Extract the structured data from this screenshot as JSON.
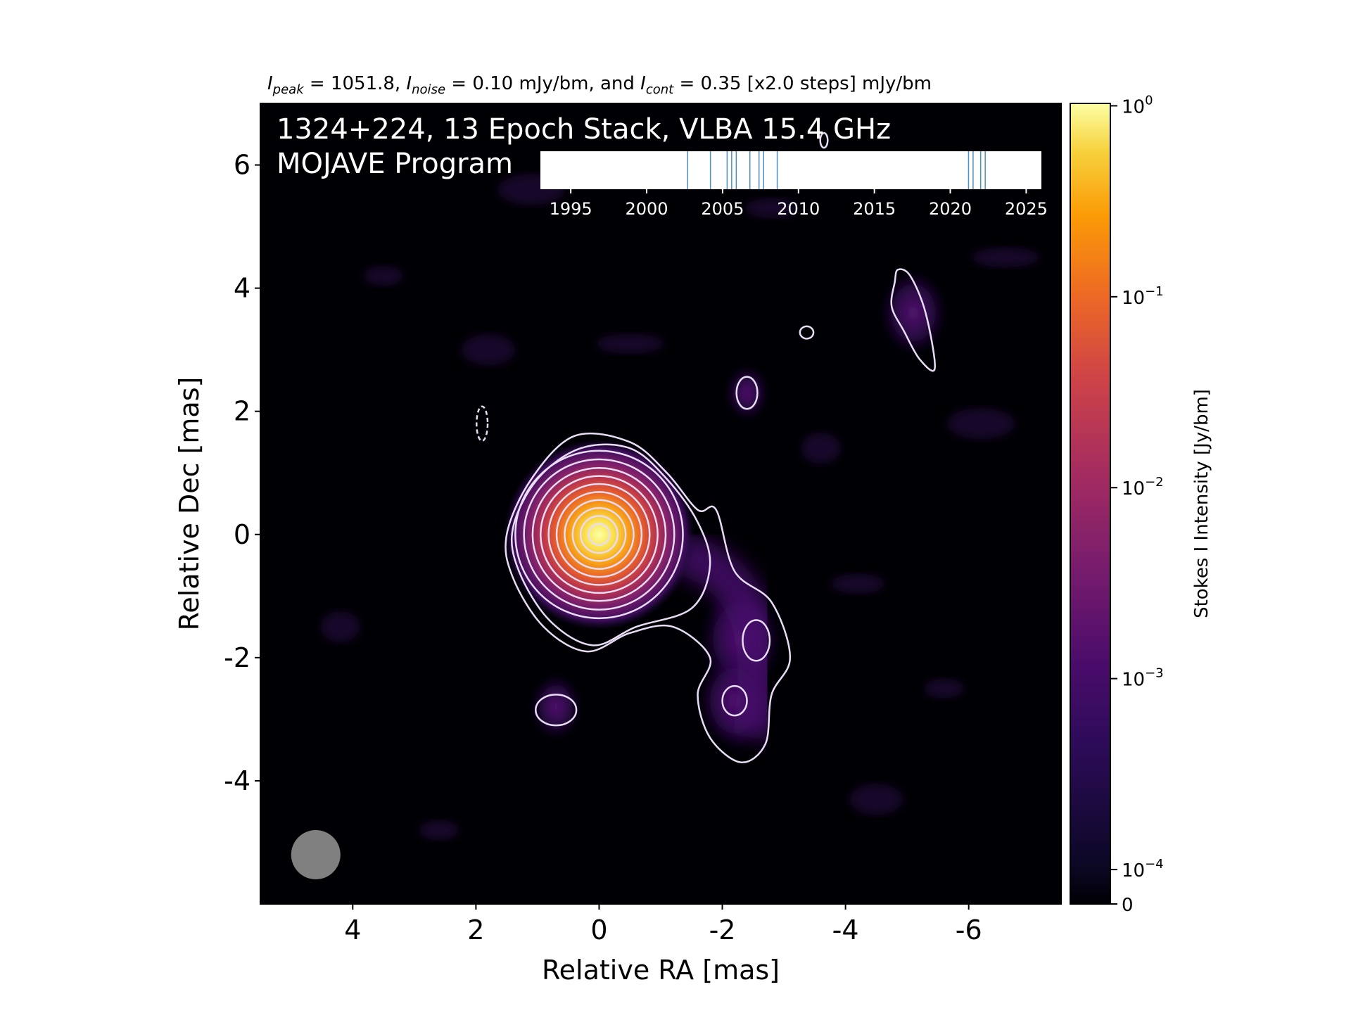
{
  "chart_data": {
    "type": "heatmap",
    "header": {
      "peak_sym": "I",
      "peak_sub": "peak",
      "peak_val": " = 1051.8, ",
      "noise_sym": "I",
      "noise_sub": "noise",
      "noise_val": " = 0.10 mJy/bm, and ",
      "cont_sym": "I",
      "cont_sub": "cont",
      "cont_val": " = 0.35 [x2.0 steps] mJy/bm"
    },
    "overlay_title_line1": "1324+224, 13 Epoch Stack, VLBA 15.4 GHz",
    "overlay_title_line2": "MOJAVE Program",
    "xlabel": "Relative RA [mas]",
    "ylabel": "Relative Dec [mas]",
    "xlim": [
      5.5,
      -7.5
    ],
    "ylim": [
      -6,
      7
    ],
    "x_ticks": [
      4,
      2,
      0,
      -2,
      -4,
      -6
    ],
    "x_tick_labels": [
      "4",
      "2",
      "0",
      "-2",
      "-4",
      "-6"
    ],
    "y_ticks": [
      6,
      4,
      2,
      0,
      -2,
      -4
    ],
    "y_tick_labels": [
      "6",
      "4",
      "2",
      "0",
      "-2",
      "-4"
    ],
    "colormap": "inferno",
    "background_color": "#000004",
    "contour_color": "#e8dcf4",
    "beam_color": "#808080",
    "components": [
      {
        "x": 0.0,
        "y": 0.0,
        "peak": 1.05,
        "sigma": 0.45
      },
      {
        "x": -2.3,
        "y": -1.7,
        "peak": 0.0009,
        "sigma": 0.5
      },
      {
        "x": -2.2,
        "y": -2.7,
        "peak": 0.0008,
        "sigma": 0.45
      },
      {
        "x": 0.7,
        "y": -2.8,
        "peak": 0.0006,
        "sigma": 0.3
      },
      {
        "x": -5.1,
        "y": 3.6,
        "peak": 0.0005,
        "sigma": 0.4
      },
      {
        "x": -2.4,
        "y": 2.3,
        "peak": 0.0004,
        "sigma": 0.25
      }
    ],
    "contour_levels_mJy": [
      0.35,
      0.7,
      1.4,
      2.8,
      5.6,
      11.2,
      22.4,
      44.8,
      89.6,
      179.2,
      358.4,
      716.8
    ],
    "beam": {
      "x": 4.6,
      "y": -5.2,
      "diameter_mas": 0.8
    },
    "colorbar": {
      "label": "Stokes I Intensity [Jy/bm]",
      "scale": "log",
      "range": [
        0,
        1
      ],
      "ticks": [
        {
          "value": 1,
          "base": "10",
          "exp": "0"
        },
        {
          "value": 0.1,
          "base": "10",
          "exp": "−1"
        },
        {
          "value": 0.01,
          "base": "10",
          "exp": "−2"
        },
        {
          "value": 0.001,
          "base": "10",
          "exp": "−3"
        },
        {
          "value": 0.0001,
          "base": "10",
          "exp": "−4"
        },
        {
          "value": 0,
          "base": "0",
          "exp": ""
        }
      ]
    },
    "epoch_timeline": {
      "xlim": [
        1993,
        2026
      ],
      "ticks": [
        1995,
        2000,
        2005,
        2010,
        2015,
        2020,
        2025
      ],
      "tick_labels": [
        "1995",
        "2000",
        "2005",
        "2010",
        "2015",
        "2020",
        "2025"
      ],
      "epochs": [
        2002.7,
        2004.2,
        2005.3,
        2005.6,
        2005.9,
        2006.8,
        2007.4,
        2007.7,
        2008.6,
        2021.2,
        2021.5,
        2022.0,
        2022.3
      ],
      "line_color": "#4c8fc0"
    }
  }
}
